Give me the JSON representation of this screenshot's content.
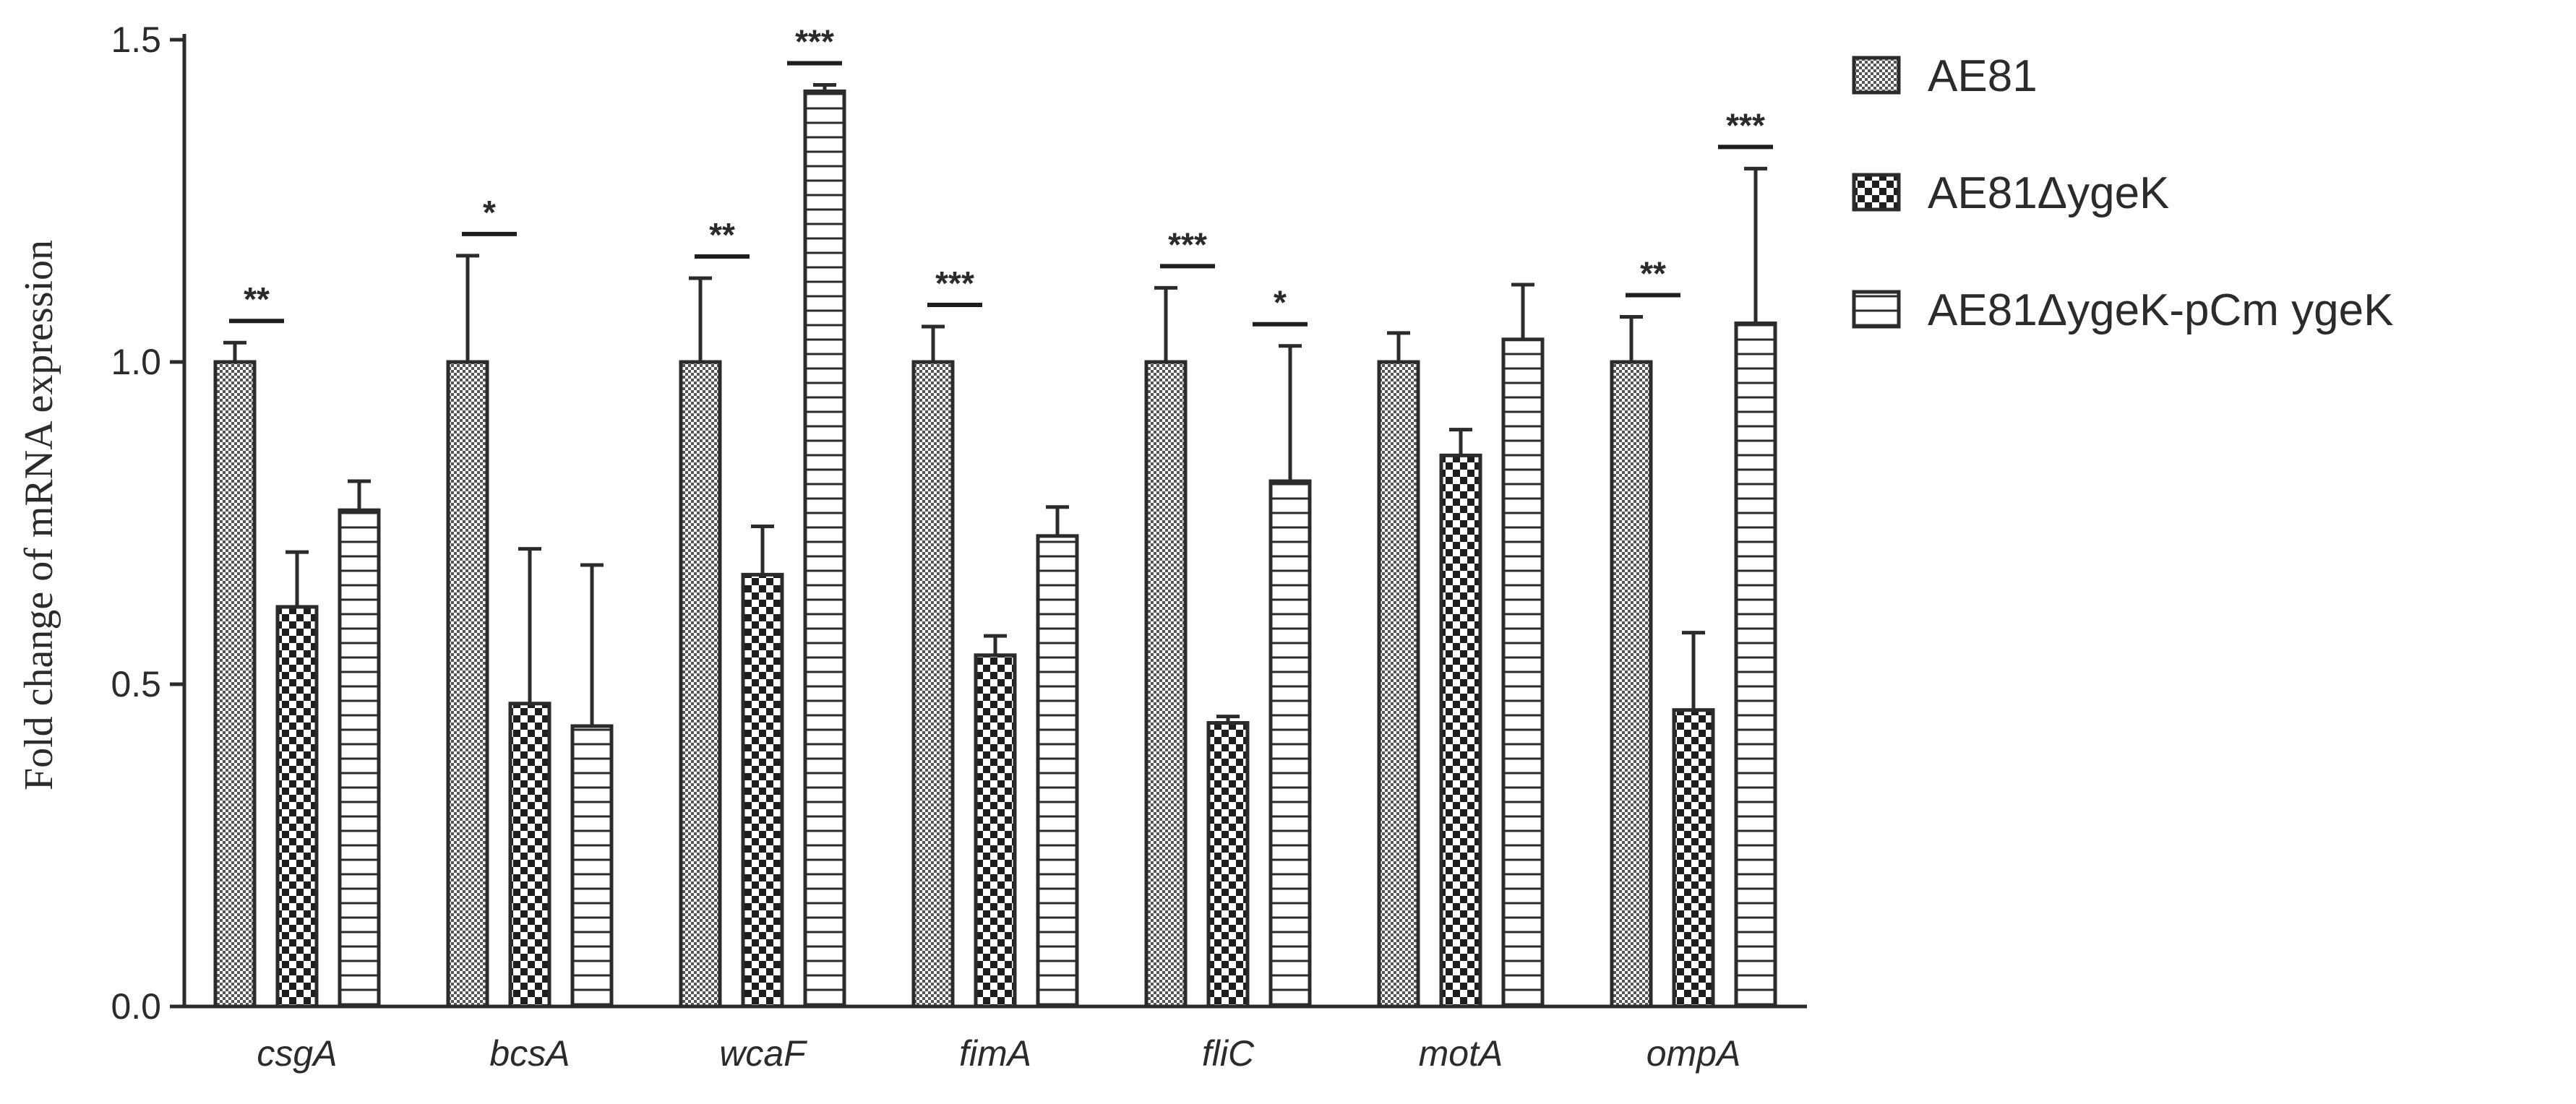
{
  "chart_data": {
    "type": "bar",
    "title": "",
    "xlabel": "",
    "ylabel": "Fold change of mRNA expression",
    "ylim": [
      0,
      1.5
    ],
    "yticks": [
      0.0,
      0.5,
      1.0,
      1.5
    ],
    "ytick_labels": [
      "0.0",
      "0.5",
      "1.0",
      "1.5"
    ],
    "categories": [
      "csgA",
      "bcsA",
      "wcaF",
      "fimA",
      "fliC",
      "motA",
      "ompA"
    ],
    "series": [
      {
        "name": "AE81",
        "pattern": "fine-check",
        "values": [
          1.0,
          1.0,
          1.0,
          1.0,
          1.0,
          1.0,
          1.0
        ],
        "errors": [
          0.03,
          0.165,
          0.13,
          0.055,
          0.115,
          0.045,
          0.07
        ]
      },
      {
        "name": "AE81ΔygeK",
        "pattern": "coarse-check",
        "values": [
          0.62,
          0.47,
          0.67,
          0.545,
          0.44,
          0.855,
          0.46
        ],
        "errors": [
          0.085,
          0.24,
          0.075,
          0.03,
          0.01,
          0.04,
          0.12
        ]
      },
      {
        "name": "AE81ΔygeK-pCm ygeK",
        "pattern": "horizontal-lines",
        "values": [
          0.77,
          0.435,
          1.42,
          0.73,
          0.815,
          1.035,
          1.06
        ],
        "errors": [
          0.045,
          0.25,
          0.01,
          0.045,
          0.21,
          0.085,
          0.24
        ]
      }
    ],
    "significance": [
      {
        "category": "csgA",
        "stars": "**",
        "position": "left-pair"
      },
      {
        "category": "bcsA",
        "stars": "*",
        "position": "left-pair"
      },
      {
        "category": "wcaF",
        "stars": "**",
        "position": "left-pair"
      },
      {
        "category": "wcaF",
        "stars": "***",
        "position": "right-pair"
      },
      {
        "category": "fimA",
        "stars": "***",
        "position": "left-pair"
      },
      {
        "category": "fliC",
        "stars": "***",
        "position": "left-pair"
      },
      {
        "category": "fliC",
        "stars": "*",
        "position": "right-pair"
      },
      {
        "category": "ompA",
        "stars": "**",
        "position": "left-pair"
      },
      {
        "category": "ompA",
        "stars": "***",
        "position": "right-pair"
      }
    ],
    "legend_position": "top-right",
    "grid": false
  }
}
